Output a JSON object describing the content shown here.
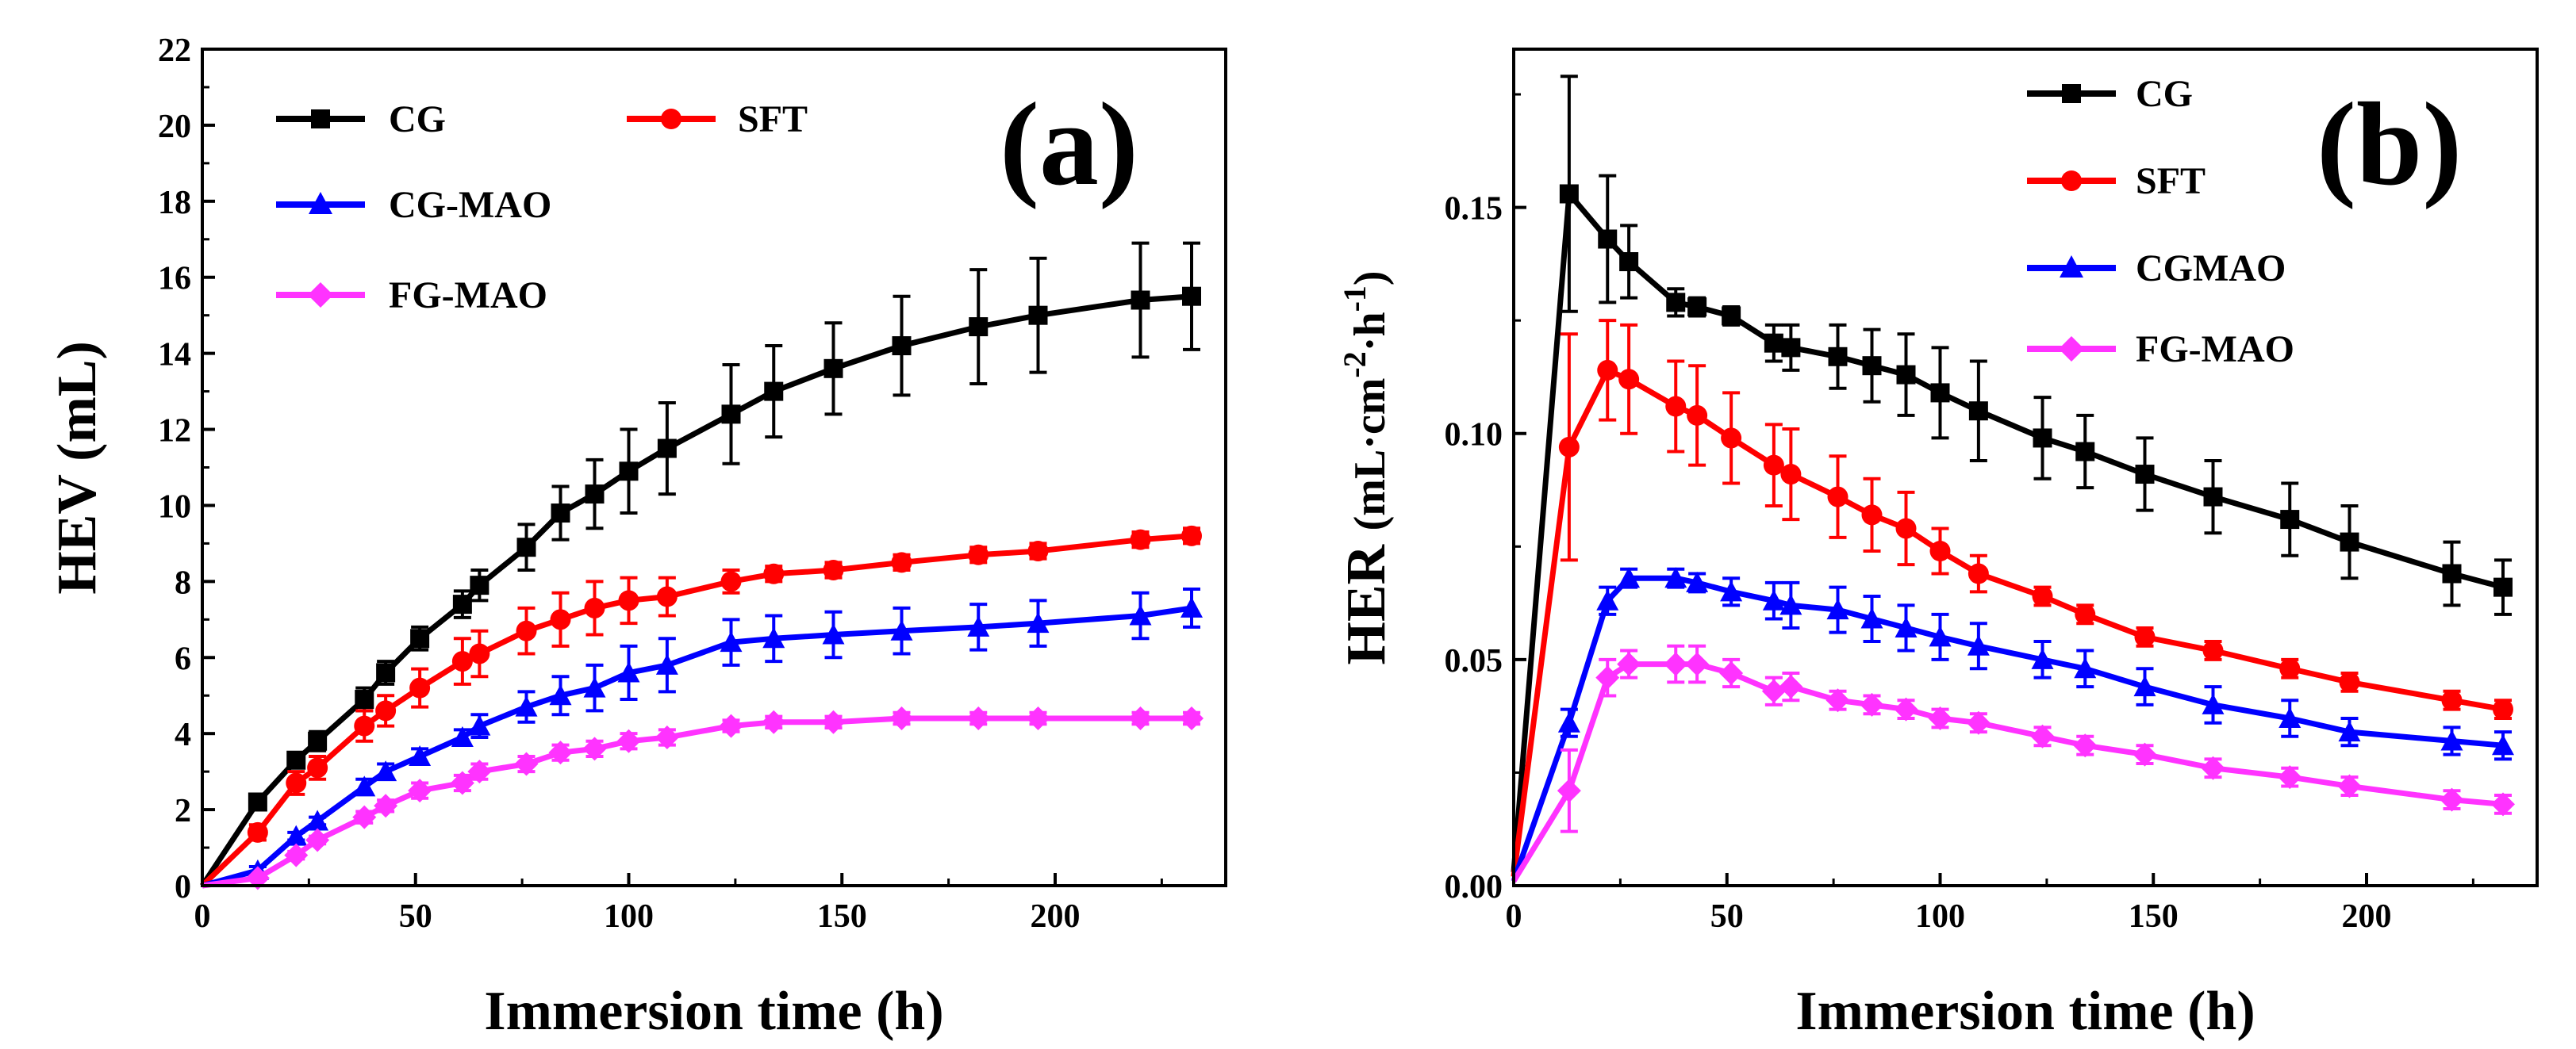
{
  "chart_data": [
    {
      "type": "line",
      "panel_label": "(a)",
      "xlabel": "Immersion time (h)",
      "ylabel_main": "HEV",
      "ylabel_unit": "(mL)",
      "xlim": [
        0,
        240
      ],
      "ylim": [
        0,
        22
      ],
      "xticks": [
        0,
        50,
        100,
        150,
        200
      ],
      "yticks": [
        0,
        2,
        4,
        6,
        8,
        10,
        12,
        14,
        16,
        18,
        20,
        22
      ],
      "x": [
        0,
        13,
        22,
        27,
        38,
        43,
        51,
        61,
        65,
        76,
        84,
        92,
        100,
        109,
        124,
        134,
        148,
        164,
        182,
        196,
        220,
        232
      ],
      "series": [
        {
          "name": "CG",
          "color": "#000000",
          "marker": "square",
          "values": [
            0,
            2.2,
            3.3,
            3.8,
            4.9,
            5.6,
            6.5,
            7.4,
            7.9,
            8.9,
            9.8,
            10.3,
            10.9,
            11.5,
            12.4,
            13.0,
            13.6,
            14.2,
            14.7,
            15.0,
            15.4,
            15.5
          ],
          "errors": [
            0,
            0.2,
            0.2,
            0.25,
            0.3,
            0.3,
            0.3,
            0.35,
            0.4,
            0.6,
            0.7,
            0.9,
            1.1,
            1.2,
            1.3,
            1.2,
            1.2,
            1.3,
            1.5,
            1.5,
            1.5,
            1.4
          ]
        },
        {
          "name": "SFT",
          "color": "#ff0000",
          "marker": "circle",
          "values": [
            0,
            1.4,
            2.7,
            3.1,
            4.2,
            4.6,
            5.2,
            5.9,
            6.1,
            6.7,
            7.0,
            7.3,
            7.5,
            7.6,
            8.0,
            8.2,
            8.3,
            8.5,
            8.7,
            8.8,
            9.1,
            9.2
          ],
          "errors": [
            0,
            0.2,
            0.3,
            0.3,
            0.4,
            0.4,
            0.5,
            0.6,
            0.6,
            0.6,
            0.7,
            0.7,
            0.6,
            0.5,
            0.3,
            0.2,
            0.2,
            0.2,
            0.2,
            0.2,
            0.2,
            0.2
          ]
        },
        {
          "name": "CG-MAO",
          "color": "#0000ff",
          "marker": "triangle",
          "values": [
            0,
            0.4,
            1.3,
            1.7,
            2.6,
            3.0,
            3.4,
            3.9,
            4.2,
            4.7,
            5.0,
            5.2,
            5.6,
            5.8,
            6.4,
            6.5,
            6.6,
            6.7,
            6.8,
            6.9,
            7.1,
            7.3
          ],
          "errors": [
            0,
            0.1,
            0.1,
            0.1,
            0.2,
            0.2,
            0.2,
            0.2,
            0.3,
            0.4,
            0.5,
            0.6,
            0.7,
            0.7,
            0.6,
            0.6,
            0.6,
            0.6,
            0.6,
            0.6,
            0.6,
            0.5
          ]
        },
        {
          "name": "FG-MAO",
          "color": "#ff33ff",
          "marker": "diamond",
          "values": [
            0,
            0.2,
            0.8,
            1.2,
            1.8,
            2.1,
            2.5,
            2.7,
            3.0,
            3.2,
            3.5,
            3.6,
            3.8,
            3.9,
            4.2,
            4.3,
            4.3,
            4.4,
            4.4,
            4.4,
            4.4,
            4.4
          ],
          "errors": [
            0,
            0.05,
            0.1,
            0.1,
            0.15,
            0.15,
            0.2,
            0.2,
            0.2,
            0.2,
            0.2,
            0.2,
            0.2,
            0.2,
            0.15,
            0.15,
            0.15,
            0.15,
            0.15,
            0.15,
            0.15,
            0.15
          ]
        }
      ]
    },
    {
      "type": "line",
      "panel_label": "(b)",
      "xlabel": "Immersion time (h)",
      "ylabel_main": "HER",
      "ylabel_unit": "(mL·cm",
      "ylabel_sup1": "-2",
      "ylabel_mid": "·h",
      "ylabel_sup2": "-1",
      "ylabel_end": ")",
      "xlim": [
        0,
        240
      ],
      "ylim": [
        0,
        0.185
      ],
      "xticks": [
        0,
        50,
        100,
        150,
        200
      ],
      "yticks": [
        0.0,
        0.05,
        0.1,
        0.15
      ],
      "ytick_labels": [
        "0.00",
        "0.05",
        "0.10",
        "0.15"
      ],
      "x": [
        0,
        13,
        22,
        27,
        38,
        43,
        51,
        61,
        65,
        76,
        84,
        92,
        100,
        109,
        124,
        134,
        148,
        164,
        182,
        196,
        220,
        232
      ],
      "series": [
        {
          "name": "CG",
          "color": "#000000",
          "marker": "square",
          "values": [
            0.003,
            0.153,
            0.143,
            0.138,
            0.129,
            0.128,
            0.126,
            0.12,
            0.119,
            0.117,
            0.115,
            0.113,
            0.109,
            0.105,
            0.099,
            0.096,
            0.091,
            0.086,
            0.081,
            0.076,
            0.069,
            0.066
          ],
          "errors": [
            0,
            0.026,
            0.014,
            0.008,
            0.003,
            0.002,
            0.002,
            0.004,
            0.005,
            0.007,
            0.008,
            0.009,
            0.01,
            0.011,
            0.009,
            0.008,
            0.008,
            0.008,
            0.008,
            0.008,
            0.007,
            0.006
          ]
        },
        {
          "name": "SFT",
          "color": "#ff0000",
          "marker": "circle",
          "values": [
            0.002,
            0.097,
            0.114,
            0.112,
            0.106,
            0.104,
            0.099,
            0.093,
            0.091,
            0.086,
            0.082,
            0.079,
            0.074,
            0.069,
            0.064,
            0.06,
            0.055,
            0.052,
            0.048,
            0.045,
            0.041,
            0.039
          ],
          "errors": [
            0,
            0.025,
            0.011,
            0.012,
            0.01,
            0.011,
            0.01,
            0.009,
            0.01,
            0.009,
            0.008,
            0.008,
            0.005,
            0.004,
            0.002,
            0.002,
            0.002,
            0.002,
            0.002,
            0.002,
            0.002,
            0.002
          ]
        },
        {
          "name": "CGMAO",
          "color": "#0000ff",
          "marker": "triangle",
          "values": [
            0.001,
            0.036,
            0.063,
            0.068,
            0.068,
            0.067,
            0.065,
            0.063,
            0.062,
            0.061,
            0.059,
            0.057,
            0.055,
            0.053,
            0.05,
            0.048,
            0.044,
            0.04,
            0.037,
            0.034,
            0.032,
            0.031
          ],
          "errors": [
            0,
            0.003,
            0.003,
            0.002,
            0.002,
            0.002,
            0.003,
            0.004,
            0.005,
            0.005,
            0.005,
            0.005,
            0.005,
            0.005,
            0.004,
            0.004,
            0.004,
            0.004,
            0.004,
            0.003,
            0.003,
            0.003
          ]
        },
        {
          "name": "FG-MAO",
          "color": "#ff33ff",
          "marker": "diamond",
          "values": [
            0.001,
            0.021,
            0.046,
            0.049,
            0.049,
            0.049,
            0.047,
            0.043,
            0.044,
            0.041,
            0.04,
            0.039,
            0.037,
            0.036,
            0.033,
            0.031,
            0.029,
            0.026,
            0.024,
            0.022,
            0.019,
            0.018
          ],
          "errors": [
            0,
            0.009,
            0.004,
            0.003,
            0.004,
            0.004,
            0.003,
            0.003,
            0.003,
            0.002,
            0.002,
            0.002,
            0.002,
            0.002,
            0.002,
            0.002,
            0.002,
            0.002,
            0.002,
            0.002,
            0.002,
            0.002
          ]
        }
      ]
    }
  ]
}
